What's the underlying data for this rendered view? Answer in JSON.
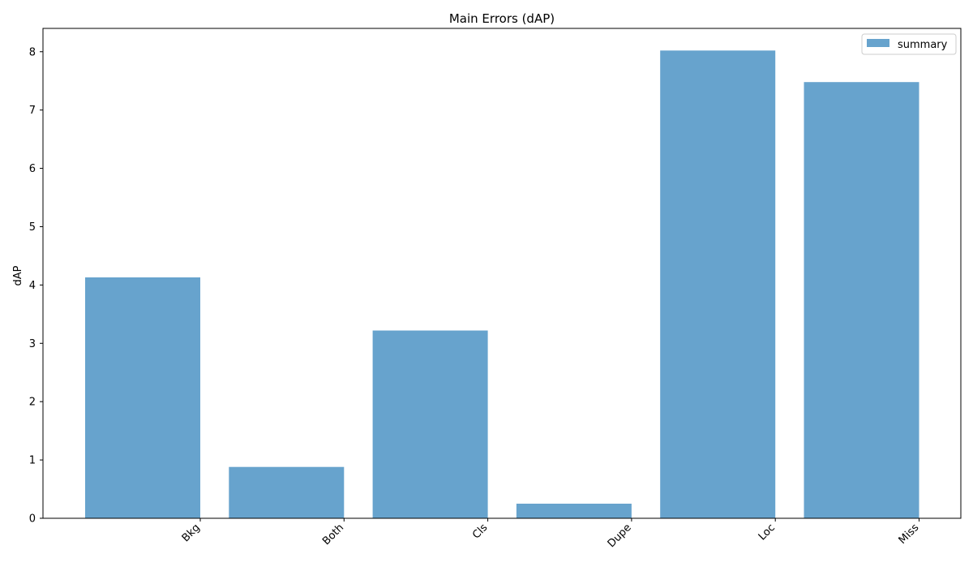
{
  "chart_data": {
    "type": "bar",
    "title": "Main Errors (dAP)",
    "xlabel": "",
    "ylabel": "dAP",
    "categories": [
      "Bkg",
      "Both",
      "Cls",
      "Dupe",
      "Loc",
      "Miss"
    ],
    "series": [
      {
        "name": "summary",
        "values": [
          4.13,
          0.88,
          3.22,
          0.25,
          8.02,
          7.48
        ],
        "color": "#4c93c4"
      }
    ],
    "ylim": [
      0,
      8.4
    ],
    "yticks": [
      0,
      1,
      2,
      3,
      4,
      5,
      6,
      7,
      8
    ],
    "grid": false,
    "legend_position": "top-right",
    "xtick_rotation_deg": 45
  }
}
